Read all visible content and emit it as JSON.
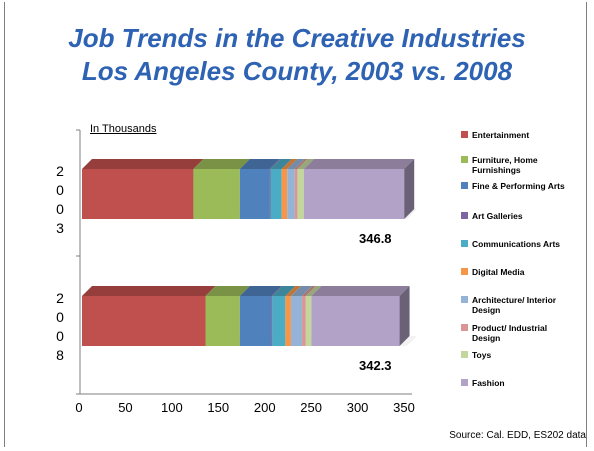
{
  "title_line1": "Job Trends in the Creative Industries",
  "title_line2": "Los Angeles County, 2003 vs. 2008",
  "unit_label": "In Thousands",
  "source": "Source: Cal. EDD, ES202 data",
  "chart_data": {
    "type": "bar",
    "orientation": "horizontal",
    "stacked": true,
    "three_d": true,
    "categories": [
      "2003",
      "2008"
    ],
    "totals": [
      "346.8",
      "342.3"
    ],
    "xlim": [
      0,
      350
    ],
    "xticks": [
      0,
      50,
      100,
      150,
      200,
      250,
      300,
      350
    ],
    "legend_position": "right",
    "series": [
      {
        "name": "Entertainment",
        "color": "#c0504d",
        "values": [
          120,
          133
        ]
      },
      {
        "name": "Furniture, Home Furnishings",
        "color": "#9bbb59",
        "values": [
          50,
          37
        ]
      },
      {
        "name": "Fine & Performing Arts",
        "color": "#4f81bd",
        "values": [
          32,
          34
        ]
      },
      {
        "name": "Art Galleries",
        "color": "#8064a2",
        "values": [
          1,
          1
        ]
      },
      {
        "name": "Communications Arts",
        "color": "#4bacc6",
        "values": [
          12,
          14
        ]
      },
      {
        "name": "Digital Media",
        "color": "#f79646",
        "values": [
          6,
          6
        ]
      },
      {
        "name": "Architecture/ Interior Design",
        "color": "#95b3d7",
        "values": [
          8,
          12
        ]
      },
      {
        "name": "Product/ Industrial Design",
        "color": "#d99694",
        "values": [
          3,
          4
        ]
      },
      {
        "name": "Toys",
        "color": "#c3d69b",
        "values": [
          7,
          6
        ]
      },
      {
        "name": "Fashion",
        "color": "#b3a2c7",
        "values": [
          108,
          95
        ]
      }
    ]
  }
}
